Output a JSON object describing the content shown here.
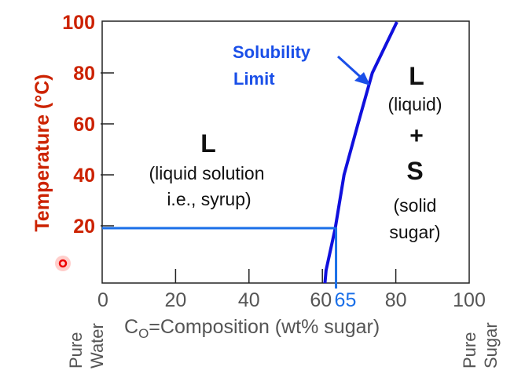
{
  "chart_data": {
    "type": "line",
    "ylabel": "Temperature (°C)",
    "xlabel_prefix": "C",
    "xlabel_sub": "O",
    "xlabel_rest": "=Composition (wt% sugar)",
    "xlim": [
      0,
      100
    ],
    "ylim": [
      0,
      100
    ],
    "x_ticks": [
      "0",
      "20",
      "40",
      "60",
      "80",
      "100"
    ],
    "x_tick_values": [
      0,
      20,
      40,
      60,
      80,
      100
    ],
    "y_ticks": [
      "20",
      "40",
      "60",
      "80",
      "100"
    ],
    "y_tick_values": [
      20,
      40,
      60,
      80,
      100
    ],
    "highlight_x_label": "65",
    "highlight_x": 65,
    "highlight_y": 20,
    "series": [
      {
        "name": "Solubility Limit",
        "x": [
          60.7,
          61,
          63.5,
          65.9,
          69.7,
          73.6,
          80.3
        ],
        "y": [
          -2.5,
          2.5,
          19,
          40,
          60,
          80,
          100
        ]
      }
    ],
    "end_labels": {
      "left": [
        "Pure",
        "Water"
      ],
      "right": [
        "Pure",
        "Sugar"
      ]
    },
    "regions": {
      "left": {
        "symbol": "L",
        "line1": "(liquid solution",
        "line2": "i.e., syrup)"
      },
      "right": {
        "symbol1": "L",
        "desc1": "(liquid)",
        "plus": "+",
        "symbol2": "S",
        "desc2a": "(solid",
        "desc2b": "sugar)"
      }
    },
    "annotation": {
      "line1": "Solubility",
      "line2": "Limit"
    },
    "colors": {
      "axis_label": "#cc2200",
      "curve": "#1010dd",
      "highlight": "#1a6fe8",
      "annotation": "#1a4fe8",
      "text": "#111111",
      "ticks_x": "#555555"
    }
  }
}
